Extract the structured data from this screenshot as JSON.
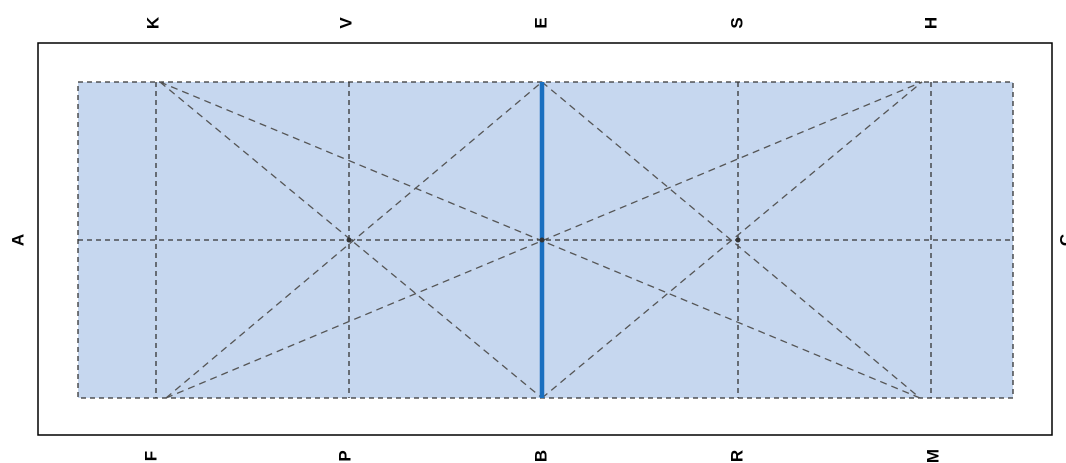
{
  "arena": {
    "top_letters": [
      "K",
      "V",
      "E",
      "S",
      "H"
    ],
    "bottom_letters": [
      "F",
      "P",
      "B",
      "R",
      "M"
    ],
    "left_letter": "A",
    "right_letter": "C"
  },
  "colors": {
    "fill": "#c6d7ef",
    "dashed_line": "#333333",
    "highlight_line": "#1a6fbf",
    "border": "#000000"
  }
}
